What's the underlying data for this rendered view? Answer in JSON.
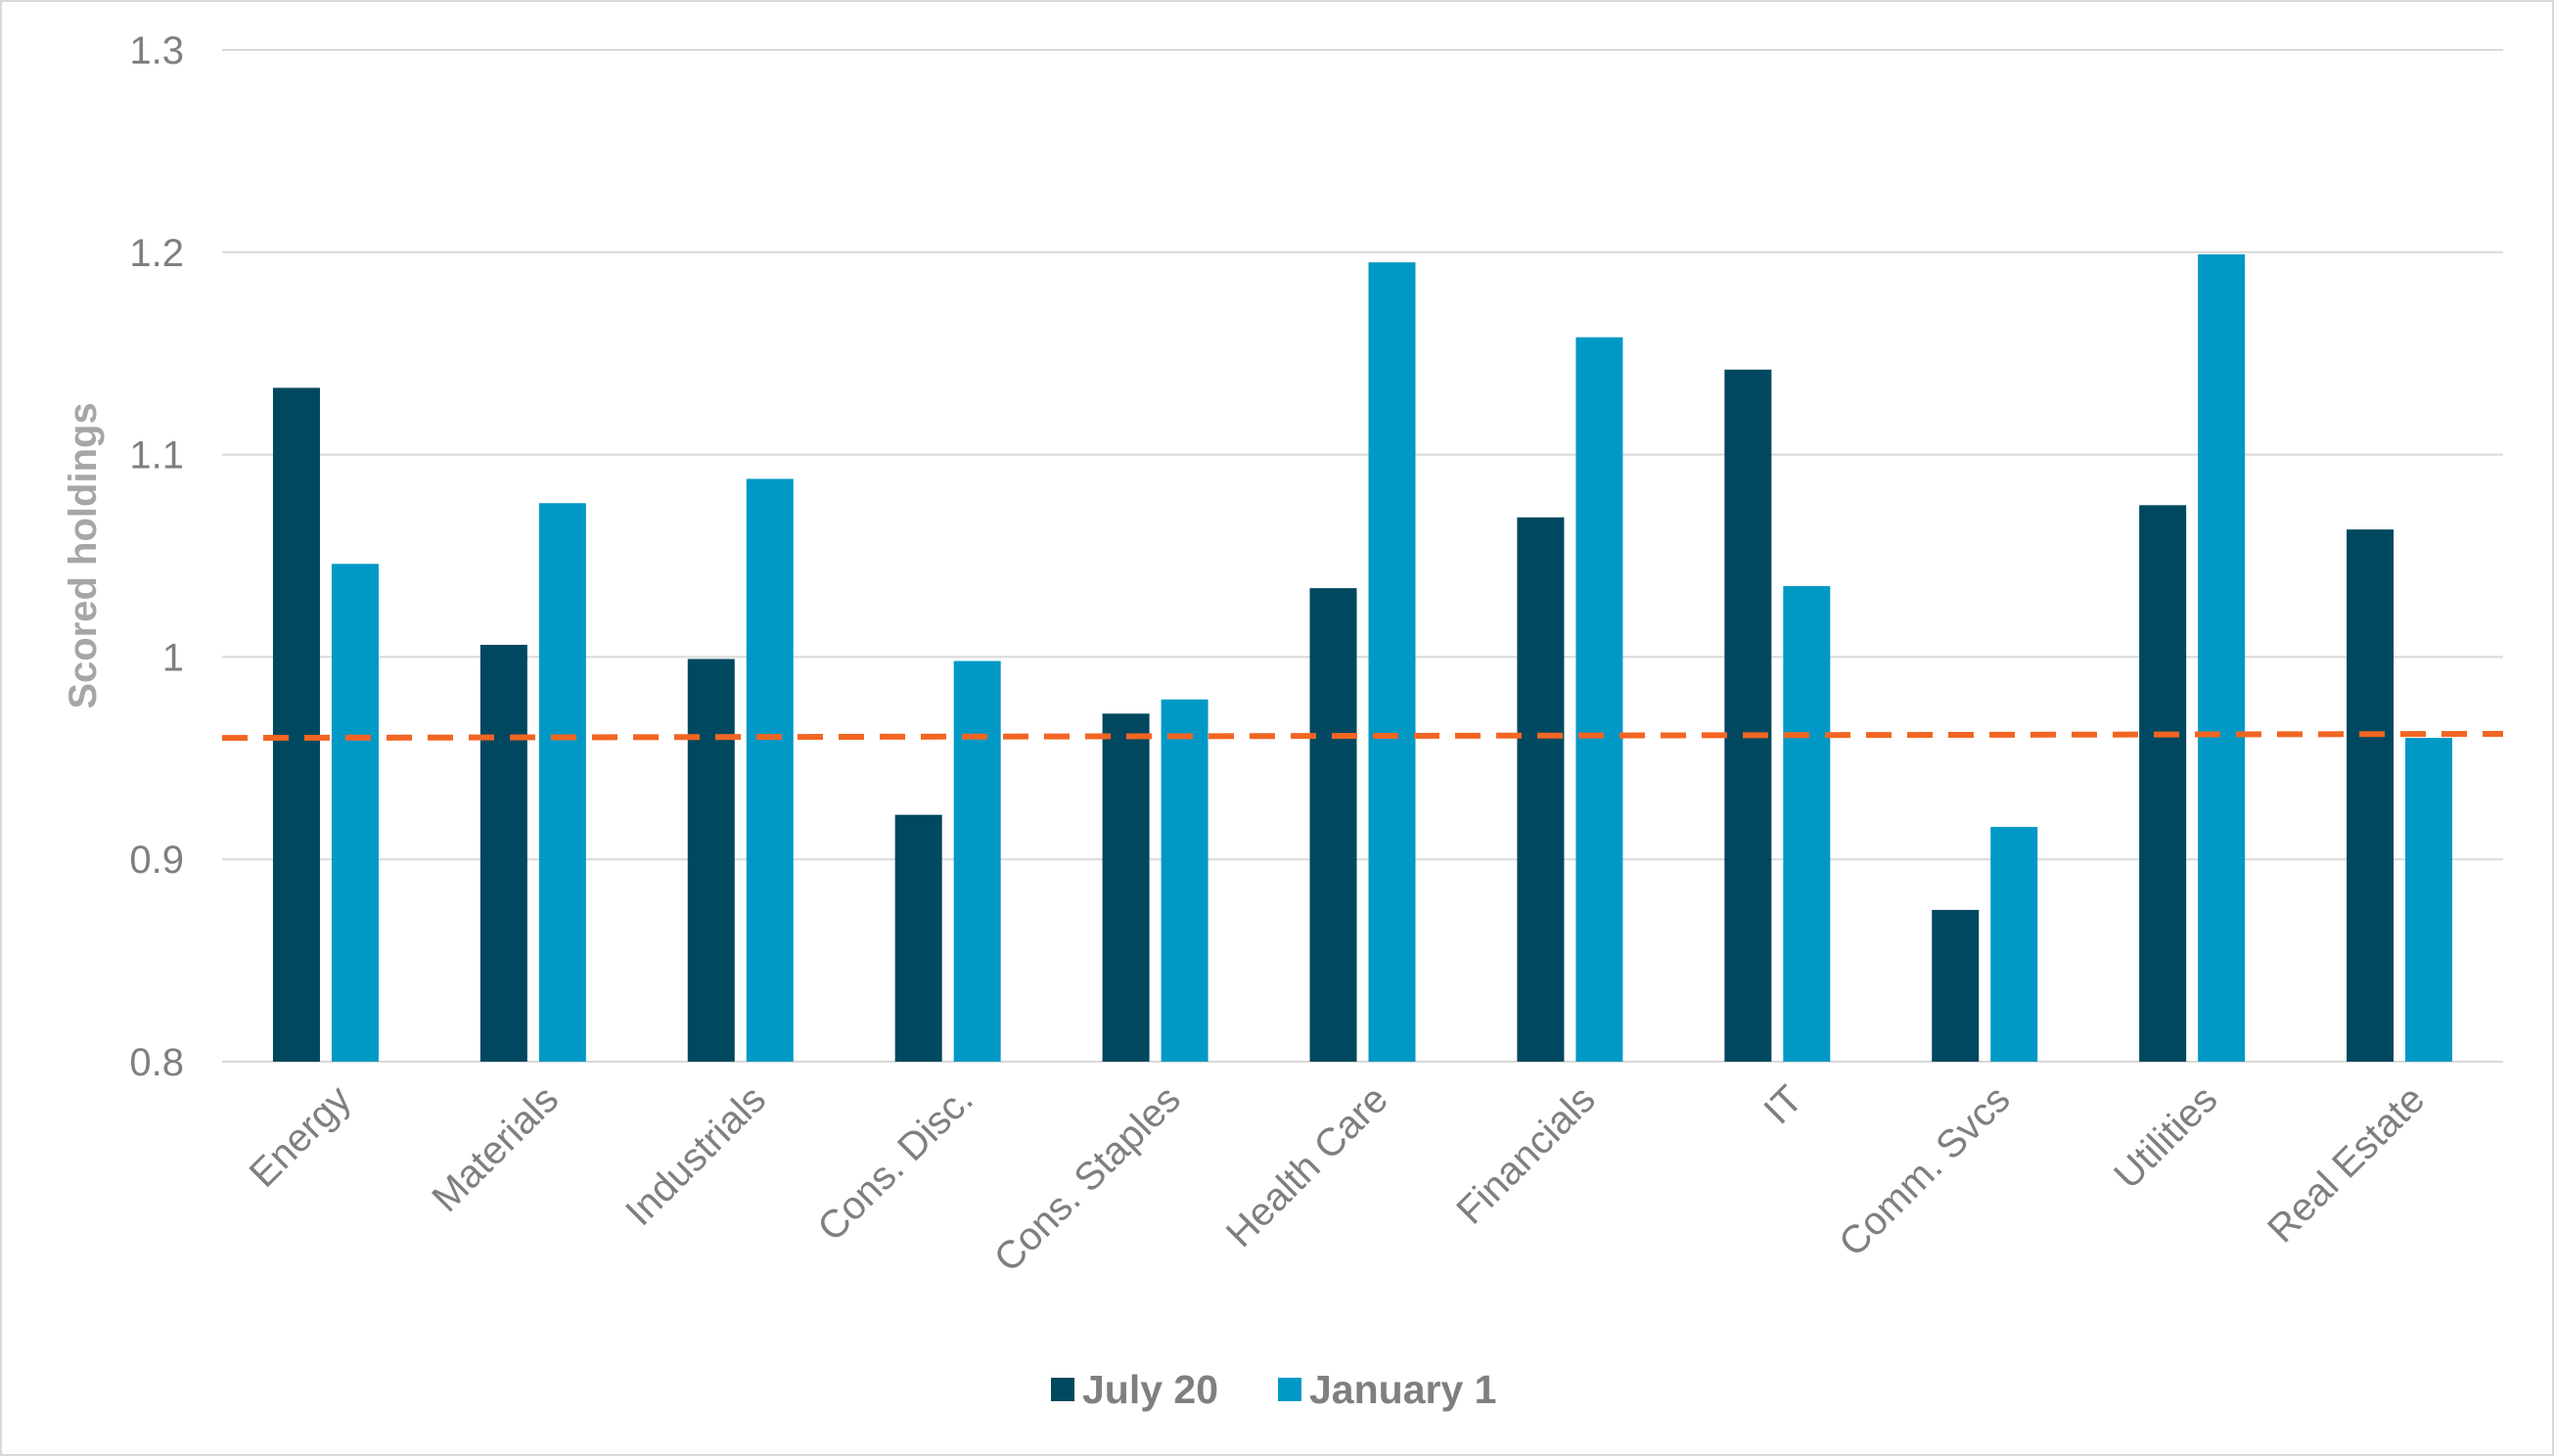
{
  "chart_data": {
    "type": "bar",
    "title": "",
    "xlabel": "",
    "ylabel": "Scored holdings",
    "ylim": [
      0.8,
      1.3
    ],
    "yticks": [
      "0.8",
      "0.9",
      "1",
      "1.1",
      "1.2",
      "1.3"
    ],
    "grid": "horizontal",
    "legend_position": "bottom-center",
    "categories": [
      "Energy",
      "Materials",
      "Industrials",
      "Cons. Disc.",
      "Cons. Staples",
      "Health Care",
      "Financials",
      "IT",
      "Comm. Svcs",
      "Utilities",
      "Real Estate"
    ],
    "series": [
      {
        "name": "July 20",
        "color": "#00485f",
        "values": [
          1.133,
          1.006,
          0.999,
          0.922,
          0.972,
          1.034,
          1.069,
          1.142,
          0.875,
          1.075,
          1.063
        ]
      },
      {
        "name": "January 1",
        "color": "#0099c6",
        "values": [
          1.046,
          1.076,
          1.088,
          0.998,
          0.979,
          1.195,
          1.158,
          1.035,
          0.916,
          1.199,
          0.96
        ]
      }
    ],
    "reference_line": {
      "style": "dashed",
      "color": "#f26522",
      "y_start": 0.96,
      "y_end": 0.962
    }
  }
}
